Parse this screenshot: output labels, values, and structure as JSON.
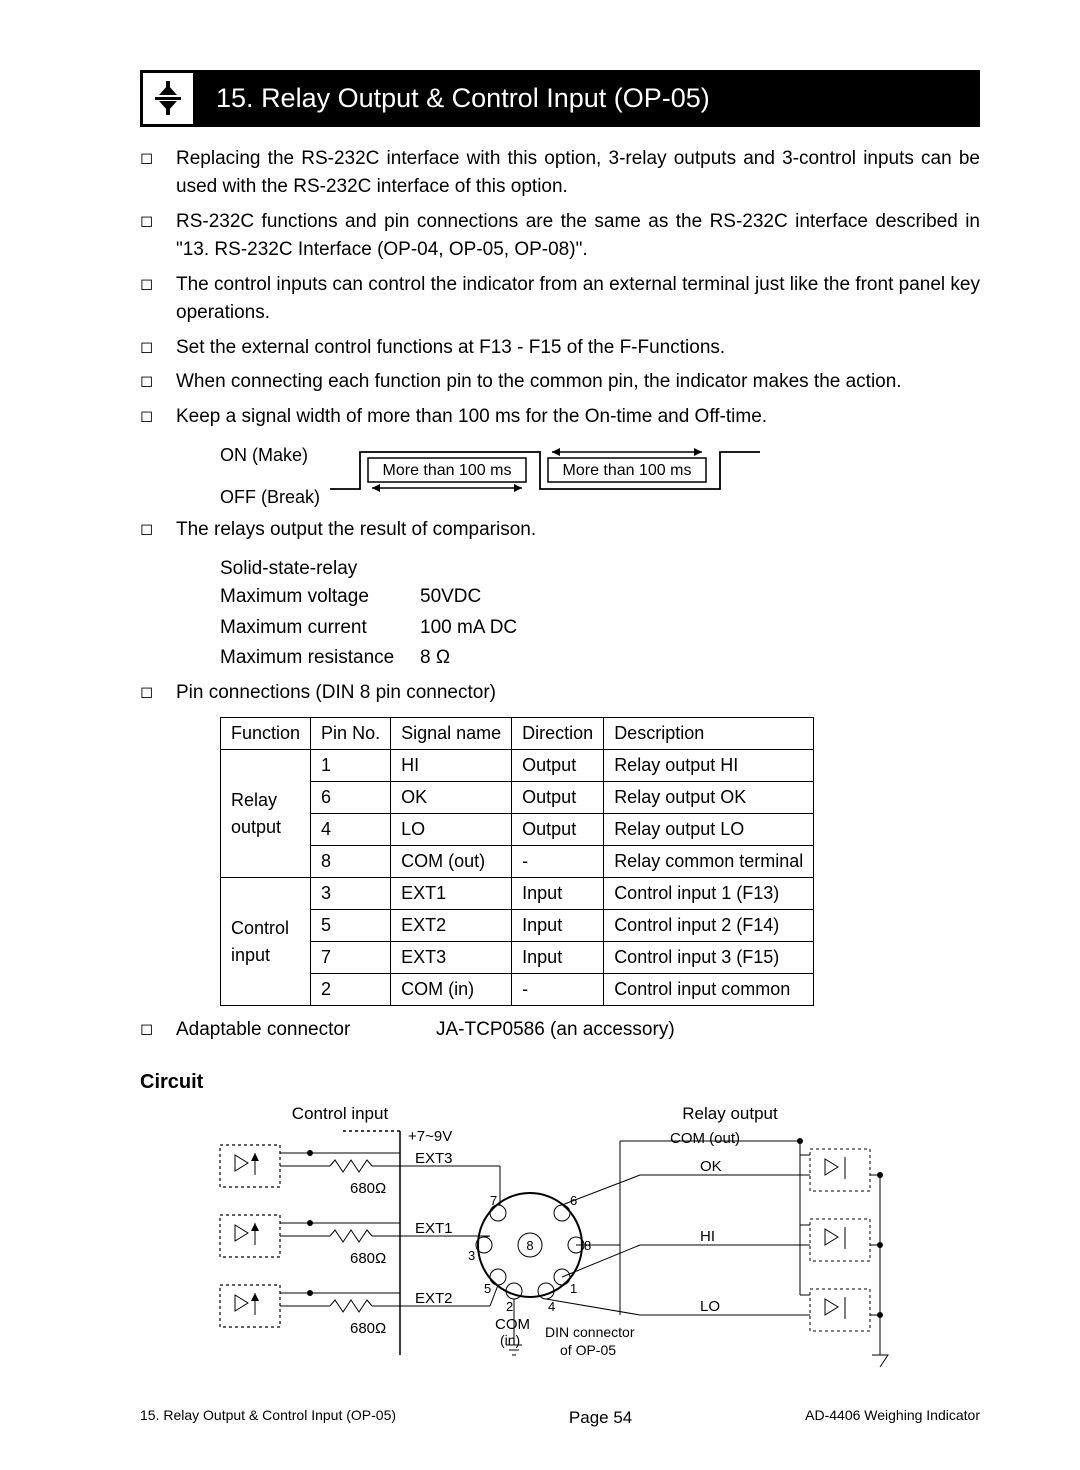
{
  "section": {
    "number": "15.",
    "title": "Relay Output & Control Input (OP-05)"
  },
  "bullets": [
    "Replacing the RS-232C interface with this option, 3-relay outputs and 3-control inputs can be used with the RS-232C interface of this option.",
    "RS-232C functions and pin connections are the same as the RS-232C interface described in \"13. RS-232C Interface (OP-04, OP-05, OP-08)\".",
    "The control inputs can control the indicator from an external terminal just like the front panel key operations.",
    "Set the external control functions at F13 - F15 of the F-Functions.",
    "When connecting each function pin to the common pin, the indicator makes the action.",
    "Keep a signal width of more than 100 ms for the On-time and Off-time."
  ],
  "timing": {
    "on_label": "ON (Make)",
    "off_label": "OFF (Break)",
    "width_text": "More than 100 ms"
  },
  "relay_bullet": "The relays output the result of comparison.",
  "relay_specs": {
    "type": "Solid-state-relay",
    "max_voltage_label": "Maximum voltage",
    "max_voltage_value": "50VDC",
    "max_current_label": "Maximum current",
    "max_current_value": "100 mA DC",
    "max_resistance_label": "Maximum resistance",
    "max_resistance_value": "8 Ω"
  },
  "pin_bullet": "Pin connections (DIN 8 pin connector)",
  "pin_table": {
    "headers": [
      "Function",
      "Pin No.",
      "Signal name",
      "Direction",
      "Description"
    ],
    "groups": [
      {
        "function": "Relay output",
        "rows": [
          {
            "pin": "1",
            "signal": "HI",
            "dir": "Output",
            "desc": "Relay output HI"
          },
          {
            "pin": "6",
            "signal": "OK",
            "dir": "Output",
            "desc": "Relay output OK"
          },
          {
            "pin": "4",
            "signal": "LO",
            "dir": "Output",
            "desc": "Relay output LO"
          },
          {
            "pin": "8",
            "signal": "COM (out)",
            "dir": "-",
            "desc": "Relay common terminal"
          }
        ]
      },
      {
        "function": "Control input",
        "rows": [
          {
            "pin": "3",
            "signal": "EXT1",
            "dir": "Input",
            "desc": "Control input 1 (F13)"
          },
          {
            "pin": "5",
            "signal": "EXT2",
            "dir": "Input",
            "desc": "Control input 2 (F14)"
          },
          {
            "pin": "7",
            "signal": "EXT3",
            "dir": "Input",
            "desc": "Control input 3 (F15)"
          },
          {
            "pin": "2",
            "signal": "COM (in)",
            "dir": "-",
            "desc": "Control input common"
          }
        ]
      }
    ]
  },
  "adaptable": {
    "label": "Adaptable connector",
    "value": "JA-TCP0586 (an accessory)"
  },
  "circuit": {
    "heading": "Circuit",
    "control_input_title": "Control input",
    "relay_output_title": "Relay output",
    "supply": "+7~9V",
    "resistor": "680Ω",
    "ext_labels": [
      "EXT3",
      "EXT1",
      "EXT2"
    ],
    "com_in": "COM",
    "com_in_sub": "(in)",
    "din_label": "DIN connector of OP-05",
    "out_labels": [
      "COM (out)",
      "OK",
      "HI",
      "LO"
    ],
    "pins": [
      "7",
      "6",
      "3",
      "8",
      "5",
      "1",
      "2",
      "4"
    ]
  },
  "footer": {
    "left": "15. Relay Output & Control Input (OP-05)",
    "center": "Page 54",
    "right": "AD-4406 Weighing Indicator"
  },
  "colors": {
    "black": "#000000",
    "white": "#ffffff"
  }
}
